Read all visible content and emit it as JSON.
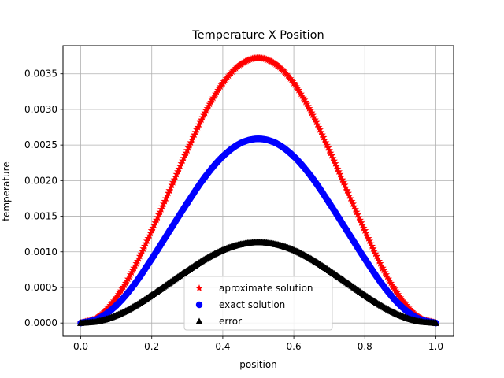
{
  "chart_data": {
    "type": "scatter",
    "title": "Temperature X Position",
    "xlabel": "position",
    "ylabel": "temperature",
    "xlim": [
      -0.05,
      1.05
    ],
    "ylim": [
      -0.000186,
      0.003895
    ],
    "xticks": [
      "0.0",
      "0.2",
      "0.4",
      "0.6",
      "0.8",
      "1.0"
    ],
    "xtick_values": [
      0.0,
      0.2,
      0.4,
      0.6,
      0.8,
      1.0
    ],
    "yticks": [
      "0.0000",
      "0.0005",
      "0.0010",
      "0.0015",
      "0.0020",
      "0.0025",
      "0.0030",
      "0.0035"
    ],
    "ytick_values": [
      0.0,
      0.0005,
      0.001,
      0.0015,
      0.002,
      0.0025,
      0.003,
      0.0035
    ],
    "grid": true,
    "legend_position": "bottom-center",
    "x": [
      0.0,
      0.05,
      0.1,
      0.15,
      0.2,
      0.25,
      0.3,
      0.35,
      0.4,
      0.45,
      0.5,
      0.55,
      0.6,
      0.65,
      0.7,
      0.75,
      0.8,
      0.85,
      0.9,
      0.95,
      1.0
    ],
    "series": [
      {
        "name": "aproximate solution",
        "marker": "star",
        "color": "#ff0000",
        "values": [
          0.0,
          9e-05,
          0.000355,
          0.000771,
          0.001298,
          0.001861,
          0.002424,
          0.002951,
          0.003367,
          0.003632,
          0.003722,
          0.003632,
          0.003367,
          0.002951,
          0.002424,
          0.001861,
          0.001298,
          0.000771,
          0.000355,
          9e-05,
          0.0
        ]
      },
      {
        "name": "exact solution",
        "marker": "circle",
        "color": "#0000ff",
        "values": [
          0.0,
          6.3e-05,
          0.000247,
          0.000536,
          0.000902,
          0.001294,
          0.001685,
          0.002051,
          0.00234,
          0.002525,
          0.002587,
          0.002525,
          0.00234,
          0.002051,
          0.001685,
          0.001294,
          0.000902,
          0.000536,
          0.000247,
          6.3e-05,
          0.0
        ]
      },
      {
        "name": "error",
        "marker": "triangle",
        "color": "#000000",
        "values": [
          0.0,
          2.7e-05,
          0.000108,
          0.000235,
          0.000395,
          0.000568,
          0.000739,
          0.000899,
          0.001027,
          0.001107,
          0.001135,
          0.001107,
          0.001027,
          0.000899,
          0.000739,
          0.000568,
          0.000395,
          0.000235,
          0.000108,
          2.7e-05,
          0.0
        ]
      }
    ]
  }
}
